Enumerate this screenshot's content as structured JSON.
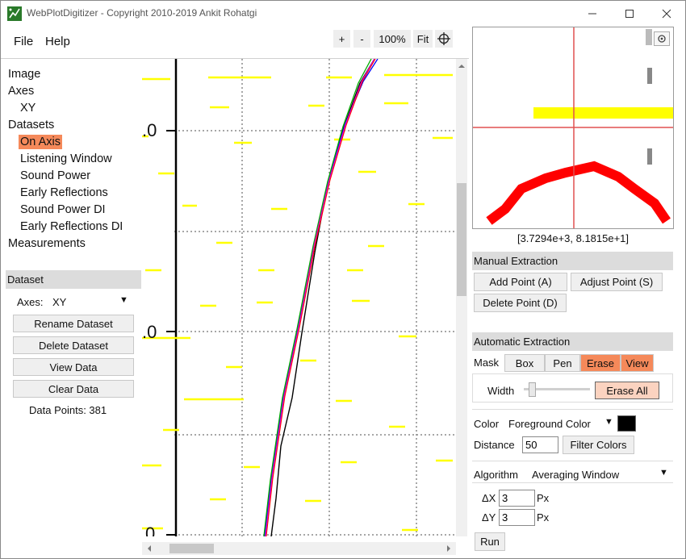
{
  "titlebar": {
    "title": "WebPlotDigitizer - Copyright 2010-2019 Ankit Rohatgi"
  },
  "menu": {
    "file": "File",
    "help": "Help"
  },
  "zoom_controls": {
    "zoom_in": "+",
    "zoom_out": "-",
    "zoom_level": "100%",
    "fit": "Fit"
  },
  "tree": {
    "image": "Image",
    "axes": "Axes",
    "axes_xy": "XY",
    "datasets": "Datasets",
    "datasets_items": [
      "On Axis",
      "Listening Window",
      "Sound Power",
      "Early Reflections",
      "Sound Power DI",
      "Early Reflections DI"
    ],
    "measurements": "Measurements"
  },
  "dataset_panel": {
    "header": "Dataset",
    "axes_label": "Axes:",
    "axes_value": "XY",
    "rename": "Rename Dataset",
    "delete": "Delete Dataset",
    "view": "View Data",
    "clear": "Clear Data",
    "data_points": "Data Points: 381"
  },
  "canvas": {
    "y_tick_labels": [
      ".0",
      ".0",
      "0"
    ]
  },
  "magnifier": {
    "coordinates": "[3.7294e+3, 8.1815e+1]"
  },
  "manual_extraction": {
    "header": "Manual Extraction",
    "add_point": "Add Point (A)",
    "adjust_point": "Adjust Point (S)",
    "delete_point": "Delete Point (D)"
  },
  "auto_extraction": {
    "header": "Automatic Extraction",
    "mask_label": "Mask",
    "mask_modes": [
      "Box",
      "Pen",
      "Erase",
      "View"
    ],
    "width_label": "Width",
    "erase_all": "Erase All",
    "color_label": "Color",
    "color_mode": "Foreground Color",
    "color_swatch": "#000000",
    "distance_label": "Distance",
    "distance_value": "50",
    "filter_colors": "Filter Colors",
    "algorithm_label": "Algorithm",
    "algorithm_value": "Averaging Window",
    "dx_label": "ΔX",
    "dx_value": "3",
    "dy_label": "ΔY",
    "dy_value": "3",
    "px_unit": "Px",
    "run": "Run"
  },
  "colors": {
    "accent": "#f5895a",
    "mask_yellow": "#ffff00",
    "extracted_red": "#ff0000"
  }
}
